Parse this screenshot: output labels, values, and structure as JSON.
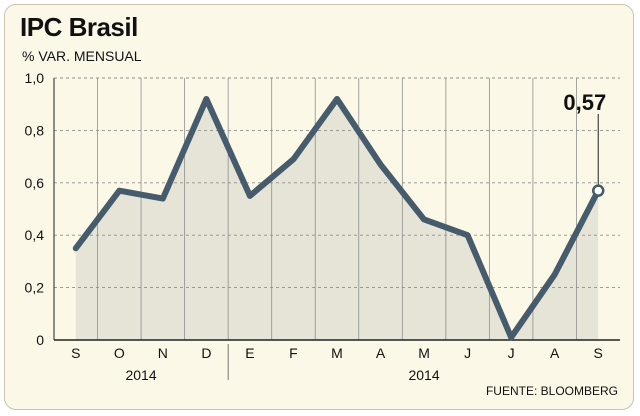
{
  "title": "IPC Brasil",
  "subtitle": "% VAR. MENSUAL",
  "source": "FUENTE: BLOOMBERG",
  "colors": {
    "background": "#fbf8e7",
    "line": "#465b6c",
    "area": "#ddddd0",
    "grid": "#8f8f8f"
  },
  "chart_data": {
    "type": "line",
    "categories": [
      "S",
      "O",
      "N",
      "D",
      "E",
      "F",
      "M",
      "A",
      "M",
      "J",
      "J",
      "A",
      "S"
    ],
    "year_labels": [
      "2014",
      "2014"
    ],
    "values": [
      0.35,
      0.57,
      0.54,
      0.92,
      0.55,
      0.69,
      0.92,
      0.67,
      0.46,
      0.4,
      0.01,
      0.25,
      0.57
    ],
    "ylim": [
      0,
      1.0
    ],
    "yticks": [
      "0",
      "0,2",
      "0,4",
      "0,6",
      "0,8",
      "1,0"
    ],
    "annotation": {
      "index": 12,
      "label": "0,57"
    },
    "grid": true
  }
}
